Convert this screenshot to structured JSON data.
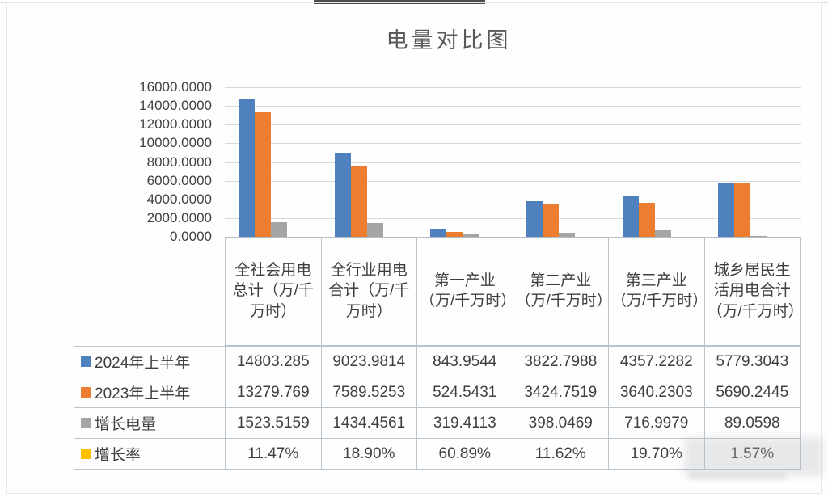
{
  "chart_data": {
    "type": "bar",
    "title": "电量对比图",
    "categories": [
      "全社会用电总计（万/千万时）",
      "全行业用电合计（万/千万时）",
      "第一产业（万/千万时）",
      "第二产业（万/千万时）",
      "第三产业（万/千万时）",
      "城乡居民生活用电合计（万/千万时）"
    ],
    "series": [
      {
        "name": "2024年上半年",
        "color": "#4E81BD",
        "values": [
          14803.285,
          9023.9814,
          843.9544,
          3822.7988,
          4357.2282,
          5779.3043
        ],
        "display": [
          "14803.285",
          "9023.9814",
          "843.9544",
          "3822.7988",
          "4357.2282",
          "5779.3043"
        ]
      },
      {
        "name": "2023年上半年",
        "color": "#ED7D31",
        "values": [
          13279.769,
          7589.5253,
          524.5431,
          3424.7519,
          3640.2303,
          5690.2445
        ],
        "display": [
          "13279.769",
          "7589.5253",
          "524.5431",
          "3424.7519",
          "3640.2303",
          "5690.2445"
        ]
      },
      {
        "name": "增长电量",
        "color": "#A5A5A5",
        "values": [
          1523.5159,
          1434.4561,
          319.4113,
          398.0469,
          716.9979,
          89.0598
        ],
        "display": [
          "1523.5159",
          "1434.4561",
          "319.4113",
          "398.0469",
          "716.9979",
          "89.0598"
        ]
      },
      {
        "name": "增长率",
        "color": "#FFC000",
        "values": [
          0.1147,
          0.189,
          0.6089,
          0.1162,
          0.197,
          0.0157
        ],
        "display": [
          "11.47%",
          "18.90%",
          "60.89%",
          "11.62%",
          "19.70%",
          "1.57%"
        ]
      }
    ],
    "ylim": [
      0,
      16000
    ],
    "ytick_step": 2000,
    "ytick_labels": [
      "0.0000",
      "2000.0000",
      "4000.0000",
      "6000.0000",
      "8000.0000",
      "10000.0000",
      "12000.0000",
      "14000.0000",
      "16000.0000"
    ],
    "grid": true,
    "legend_position": "data-table-row-keys"
  }
}
